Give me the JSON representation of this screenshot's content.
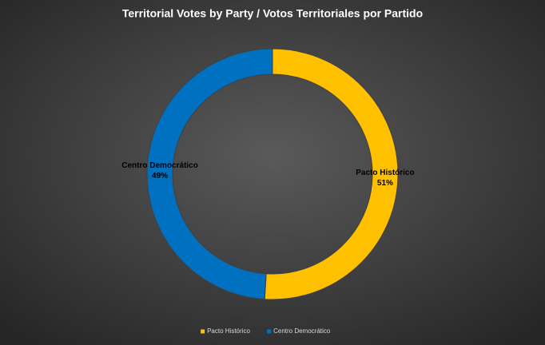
{
  "chart_data": {
    "type": "pie",
    "title": "Territorial Votes by Party / Votos Territoriales por Partido",
    "categories": [
      "Pacto Histórico",
      "Centro Democrático"
    ],
    "values": [
      51,
      49
    ],
    "value_labels": [
      "51%",
      "49%"
    ],
    "colors": [
      "#FFC000",
      "#0070C0"
    ],
    "donut": true,
    "legend": "bottom"
  }
}
